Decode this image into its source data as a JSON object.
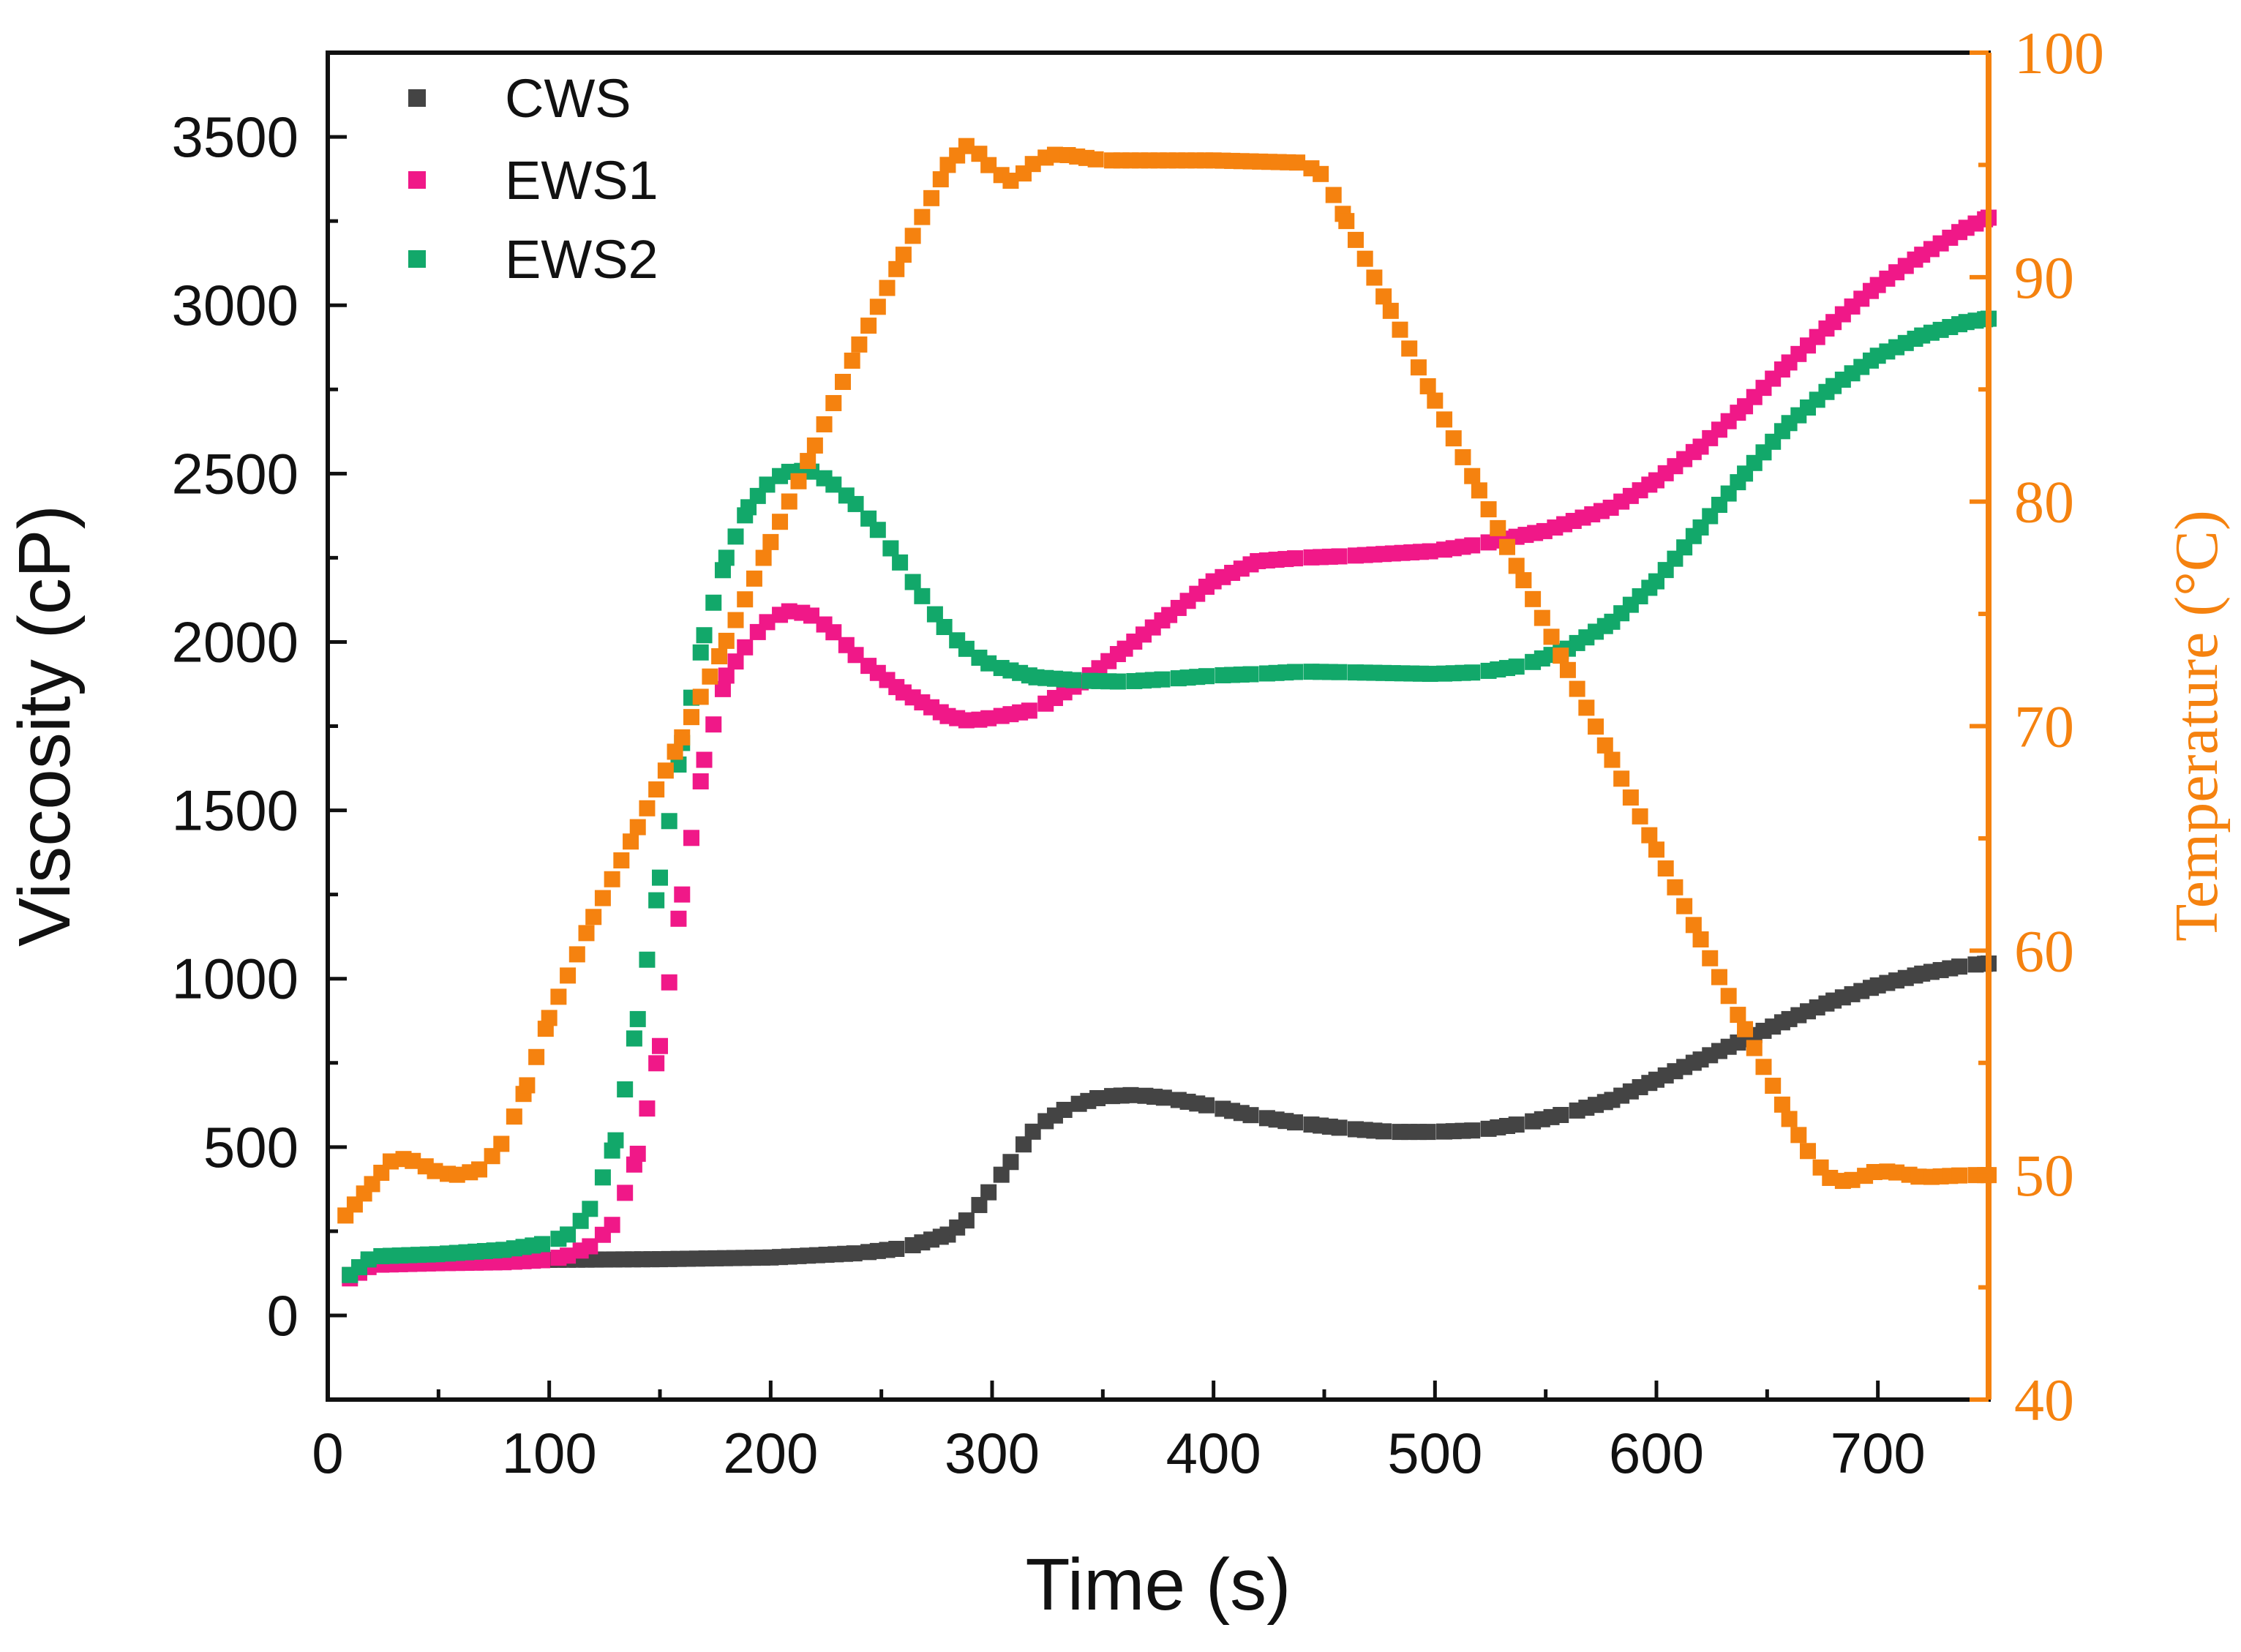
{
  "chart_data": {
    "type": "scatter",
    "title": "",
    "xlabel": "Time (s)",
    "ylabel": "Viscosity (cP)",
    "y2label": "Temperature (°C)",
    "xlim": [
      0,
      750
    ],
    "ylim": [
      -250,
      3750
    ],
    "y2lim": [
      40,
      100
    ],
    "grid": false,
    "legend_position": "top-left",
    "colors": {
      "axis_right": "#f5820f",
      "axis": "#111111"
    },
    "x_ticks": [
      "0",
      "100",
      "200",
      "300",
      "400",
      "500",
      "600",
      "700"
    ],
    "y_ticks": [
      "0",
      "500",
      "1000",
      "1500",
      "2000",
      "2500",
      "3000",
      "3500"
    ],
    "y2_ticks": [
      "40",
      "50",
      "60",
      "70",
      "80",
      "90",
      "100"
    ],
    "series": [
      {
        "name": "CWS",
        "axis": "left",
        "color": "#444444",
        "points": [
          [
            10,
            120
          ],
          [
            20,
            160
          ],
          [
            50,
            163
          ],
          [
            100,
            165
          ],
          [
            150,
            167
          ],
          [
            200,
            172
          ],
          [
            240,
            185
          ],
          [
            260,
            200
          ],
          [
            280,
            240
          ],
          [
            290,
            290
          ],
          [
            300,
            380
          ],
          [
            310,
            470
          ],
          [
            320,
            560
          ],
          [
            335,
            620
          ],
          [
            350,
            650
          ],
          [
            365,
            655
          ],
          [
            380,
            645
          ],
          [
            400,
            620
          ],
          [
            420,
            590
          ],
          [
            440,
            570
          ],
          [
            460,
            555
          ],
          [
            480,
            545
          ],
          [
            500,
            545
          ],
          [
            520,
            550
          ],
          [
            540,
            570
          ],
          [
            560,
            600
          ],
          [
            580,
            640
          ],
          [
            600,
            700
          ],
          [
            620,
            760
          ],
          [
            640,
            820
          ],
          [
            660,
            880
          ],
          [
            680,
            935
          ],
          [
            700,
            980
          ],
          [
            720,
            1015
          ],
          [
            740,
            1040
          ],
          [
            750,
            1045
          ]
        ]
      },
      {
        "name": "EWS1",
        "axis": "left",
        "color": "#f01888",
        "points": [
          [
            10,
            110
          ],
          [
            20,
            150
          ],
          [
            50,
            155
          ],
          [
            80,
            158
          ],
          [
            100,
            165
          ],
          [
            110,
            180
          ],
          [
            120,
            210
          ],
          [
            130,
            280
          ],
          [
            140,
            480
          ],
          [
            150,
            800
          ],
          [
            160,
            1250
          ],
          [
            170,
            1650
          ],
          [
            180,
            1900
          ],
          [
            190,
            2000
          ],
          [
            200,
            2070
          ],
          [
            210,
            2095
          ],
          [
            220,
            2075
          ],
          [
            230,
            2020
          ],
          [
            240,
            1950
          ],
          [
            260,
            1850
          ],
          [
            280,
            1780
          ],
          [
            290,
            1765
          ],
          [
            300,
            1775
          ],
          [
            320,
            1800
          ],
          [
            340,
            1880
          ],
          [
            360,
            1980
          ],
          [
            380,
            2080
          ],
          [
            400,
            2180
          ],
          [
            420,
            2240
          ],
          [
            440,
            2250
          ],
          [
            460,
            2255
          ],
          [
            500,
            2270
          ],
          [
            520,
            2290
          ],
          [
            550,
            2330
          ],
          [
            580,
            2400
          ],
          [
            600,
            2480
          ],
          [
            620,
            2580
          ],
          [
            640,
            2700
          ],
          [
            660,
            2830
          ],
          [
            680,
            2950
          ],
          [
            700,
            3060
          ],
          [
            720,
            3150
          ],
          [
            740,
            3230
          ],
          [
            750,
            3260
          ]
        ]
      },
      {
        "name": "EWS2",
        "axis": "left",
        "color": "#12a86a",
        "points": [
          [
            10,
            120
          ],
          [
            20,
            175
          ],
          [
            50,
            182
          ],
          [
            80,
            195
          ],
          [
            100,
            215
          ],
          [
            110,
            245
          ],
          [
            120,
            330
          ],
          [
            130,
            520
          ],
          [
            140,
            880
          ],
          [
            150,
            1300
          ],
          [
            160,
            1700
          ],
          [
            170,
            2020
          ],
          [
            180,
            2250
          ],
          [
            190,
            2400
          ],
          [
            200,
            2480
          ],
          [
            210,
            2510
          ],
          [
            220,
            2505
          ],
          [
            230,
            2460
          ],
          [
            240,
            2400
          ],
          [
            250,
            2320
          ],
          [
            260,
            2220
          ],
          [
            270,
            2120
          ],
          [
            280,
            2030
          ],
          [
            290,
            1970
          ],
          [
            300,
            1930
          ],
          [
            320,
            1895
          ],
          [
            340,
            1885
          ],
          [
            360,
            1882
          ],
          [
            380,
            1890
          ],
          [
            400,
            1900
          ],
          [
            420,
            1905
          ],
          [
            440,
            1912
          ],
          [
            460,
            1910
          ],
          [
            500,
            1905
          ],
          [
            520,
            1910
          ],
          [
            540,
            1930
          ],
          [
            560,
            1980
          ],
          [
            580,
            2060
          ],
          [
            600,
            2180
          ],
          [
            620,
            2340
          ],
          [
            640,
            2500
          ],
          [
            660,
            2650
          ],
          [
            680,
            2760
          ],
          [
            700,
            2850
          ],
          [
            720,
            2910
          ],
          [
            740,
            2950
          ],
          [
            750,
            2960
          ]
        ]
      },
      {
        "name": "Temperature",
        "axis": "right",
        "color": "#f5820f",
        "points": [
          [
            8,
            48.2
          ],
          [
            20,
            49.6
          ],
          [
            30,
            50.8
          ],
          [
            40,
            50.6
          ],
          [
            50,
            50.1
          ],
          [
            60,
            50.0
          ],
          [
            70,
            50.3
          ],
          [
            80,
            51.6
          ],
          [
            90,
            54.0
          ],
          [
            100,
            57.0
          ],
          [
            120,
            61.5
          ],
          [
            140,
            65.5
          ],
          [
            160,
            69.5
          ],
          [
            180,
            73.8
          ],
          [
            200,
            78.2
          ],
          [
            220,
            82.5
          ],
          [
            240,
            87.0
          ],
          [
            260,
            91.0
          ],
          [
            280,
            95.0
          ],
          [
            290,
            96.0
          ],
          [
            300,
            94.8
          ],
          [
            310,
            94.2
          ],
          [
            320,
            95.2
          ],
          [
            330,
            95.5
          ],
          [
            350,
            95.2
          ],
          [
            400,
            95.2
          ],
          [
            440,
            95.1
          ],
          [
            450,
            94.5
          ],
          [
            460,
            92.5
          ],
          [
            480,
            88.5
          ],
          [
            500,
            84.5
          ],
          [
            520,
            80.5
          ],
          [
            540,
            76.5
          ],
          [
            560,
            72.5
          ],
          [
            580,
            68.5
          ],
          [
            600,
            64.5
          ],
          [
            620,
            60.5
          ],
          [
            640,
            56.5
          ],
          [
            660,
            52.5
          ],
          [
            670,
            50.8
          ],
          [
            680,
            49.7
          ],
          [
            690,
            49.8
          ],
          [
            700,
            50.2
          ],
          [
            710,
            50.1
          ],
          [
            720,
            49.9
          ],
          [
            740,
            50.0
          ],
          [
            750,
            50.0
          ]
        ]
      }
    ]
  }
}
